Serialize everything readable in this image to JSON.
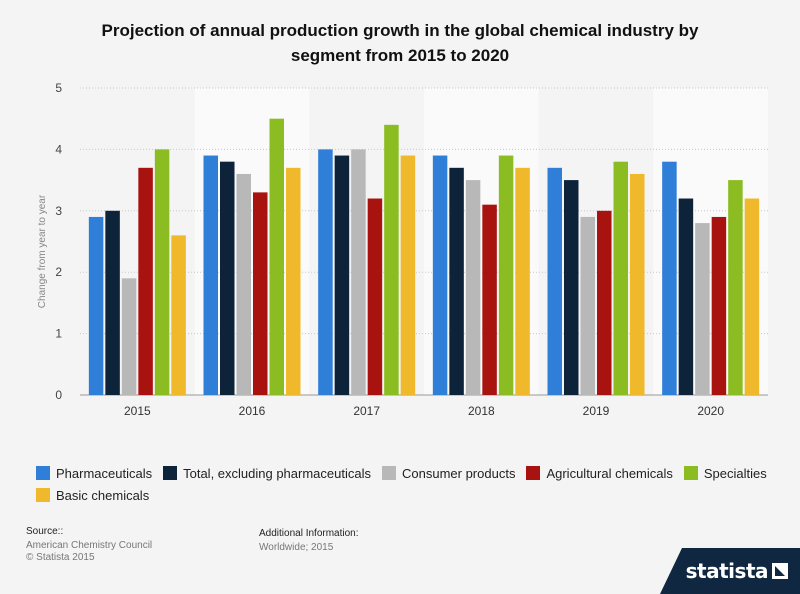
{
  "title": {
    "line1": "Projection of annual production growth in the global chemical industry by",
    "line2": "segment from 2015 to 2020"
  },
  "chart_data": {
    "type": "bar",
    "categories": [
      "2015",
      "2016",
      "2017",
      "2018",
      "2019",
      "2020"
    ],
    "series": [
      {
        "name": "Pharmaceuticals",
        "color": "#2f7ed8",
        "values": [
          2.9,
          3.9,
          4.0,
          3.9,
          3.7,
          3.8
        ]
      },
      {
        "name": "Total, excluding pharmaceuticals",
        "color": "#0d233a",
        "values": [
          3.0,
          3.8,
          3.9,
          3.7,
          3.5,
          3.2
        ]
      },
      {
        "name": "Consumer products",
        "color": "#b8b8b8",
        "values": [
          1.9,
          3.6,
          4.0,
          3.5,
          2.9,
          2.8
        ]
      },
      {
        "name": "Agricultural chemicals",
        "color": "#a8120f",
        "values": [
          3.7,
          3.3,
          3.2,
          3.1,
          3.0,
          2.9
        ]
      },
      {
        "name": "Specialties",
        "color": "#8bbc21",
        "values": [
          4.0,
          4.5,
          4.4,
          3.9,
          3.8,
          3.5
        ]
      },
      {
        "name": "Basic chemicals",
        "color": "#f0b92b",
        "values": [
          2.6,
          3.7,
          3.9,
          3.7,
          3.6,
          3.2
        ]
      }
    ],
    "ylabel": "Change from year to year",
    "xlabel": "",
    "ylim": [
      0,
      5
    ],
    "yticks": [
      "0",
      "1",
      "2",
      "3",
      "4",
      "5"
    ],
    "grid": true,
    "legend": "bottom"
  },
  "source": {
    "label": "Source::",
    "line1": "American Chemistry Council",
    "line2": "© Statista 2015"
  },
  "additional_info": {
    "label": "Additional Information:",
    "line1": "Worldwide; 2015"
  },
  "brand": {
    "name": "statista"
  }
}
